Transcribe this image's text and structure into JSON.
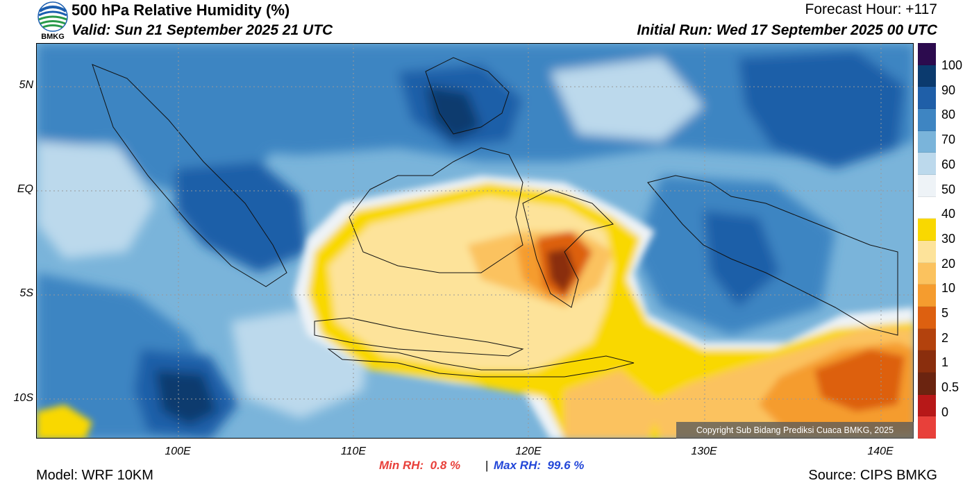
{
  "header": {
    "title": "500 hPa Relative Humidity (%)",
    "valid": "Valid: Sun 21 September 2025 21 UTC",
    "forecast_hour": "Forecast Hour: +117",
    "initial_run": "Initial Run: Wed 17 September 2025 00 UTC",
    "logo_text": "BMKG"
  },
  "axes": {
    "lat_labels": [
      "5N",
      "EQ",
      "5S",
      "10S"
    ],
    "lon_labels": [
      "100E",
      "110E",
      "120E",
      "130E",
      "140E"
    ]
  },
  "colorbar": {
    "labels": [
      "100",
      "90",
      "80",
      "70",
      "60",
      "50",
      "40",
      "30",
      "20",
      "10",
      "5",
      "2",
      "1",
      "0.5",
      "0"
    ],
    "colors": [
      "#2c0b4e",
      "#0b3a6e",
      "#1f5fa8",
      "#3e85c2",
      "#7ab4da",
      "#bcd9ec",
      "#eef3f7",
      "#ffffff",
      "#f9d800",
      "#fde39a",
      "#fbc25e",
      "#f59c2e",
      "#dd6010",
      "#b3420d",
      "#8a2e0d",
      "#6b2410",
      "#b71818",
      "#e8403a"
    ]
  },
  "stats": {
    "min_label": "Min RH:",
    "min_value": "0.8 %",
    "separator": "|",
    "max_label": "Max RH:",
    "max_value": "99.6 %"
  },
  "footer": {
    "model": "Model: WRF 10KM",
    "source": "Source: CIPS BMKG",
    "copyright": "Copyright Sub Bidang Prediksi Cuaca BMKG, 2025"
  }
}
